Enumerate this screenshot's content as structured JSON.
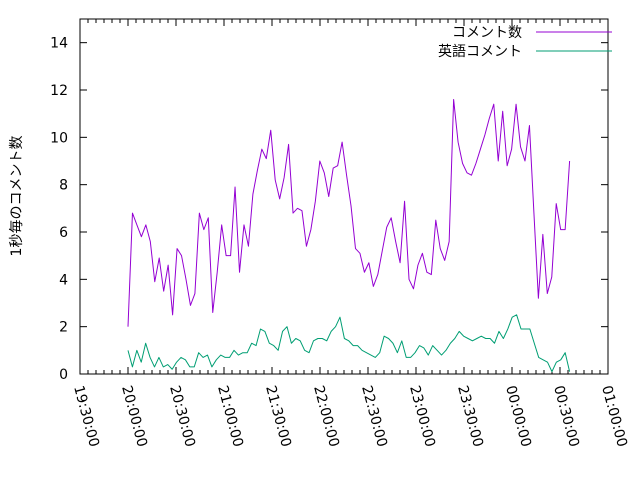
{
  "chart_data": {
    "type": "line",
    "title": "",
    "xlabel": "",
    "ylabel": "1秒毎のコメント数",
    "ylim": [
      0,
      15
    ],
    "yticks": [
      0,
      2,
      4,
      6,
      8,
      10,
      12,
      14
    ],
    "xlim": [
      "19:30:00",
      "01:00:00"
    ],
    "xticks": [
      "19:30:00",
      "20:00:00",
      "20:30:00",
      "21:00:00",
      "21:30:00",
      "22:00:00",
      "22:30:00",
      "23:00:00",
      "23:30:00",
      "00:00:00",
      "00:30:00",
      "01:00:00"
    ],
    "grid": false,
    "legend_position": "top-right",
    "x_start": "20:00:00",
    "x_end": "00:36:00",
    "series": [
      {
        "name": "コメント数",
        "color": "#9400d3",
        "values": [
          2.0,
          6.8,
          6.3,
          5.8,
          6.3,
          5.6,
          3.9,
          4.9,
          3.5,
          4.6,
          2.5,
          5.3,
          5.0,
          4.0,
          2.9,
          3.4,
          6.8,
          6.1,
          6.6,
          2.6,
          4.3,
          6.3,
          5.0,
          5.0,
          7.9,
          4.3,
          6.3,
          5.4,
          7.6,
          8.6,
          9.5,
          9.1,
          10.3,
          8.2,
          7.4,
          8.3,
          9.7,
          6.8,
          7.0,
          6.9,
          5.4,
          6.1,
          7.3,
          9.0,
          8.5,
          7.5,
          8.7,
          8.8,
          9.8,
          8.4,
          7.1,
          5.3,
          5.1,
          4.3,
          4.7,
          3.7,
          4.2,
          5.2,
          6.2,
          6.6,
          5.6,
          4.7,
          7.3,
          4.0,
          3.6,
          4.6,
          5.1,
          4.3,
          4.2,
          6.5,
          5.3,
          4.8,
          5.6,
          11.6,
          9.8,
          8.9,
          8.5,
          8.4,
          8.9,
          9.5,
          10.1,
          10.8,
          11.4,
          9.0,
          11.1,
          8.8,
          9.5,
          11.4,
          9.6,
          9.0,
          10.5,
          6.8,
          3.2,
          5.9,
          3.4,
          4.1,
          7.2,
          6.1,
          6.1,
          9.0
        ]
      },
      {
        "name": "英語コメント",
        "color": "#009e73",
        "values": [
          1.0,
          0.3,
          1.0,
          0.5,
          1.3,
          0.7,
          0.3,
          0.7,
          0.3,
          0.4,
          0.2,
          0.5,
          0.7,
          0.6,
          0.3,
          0.3,
          0.9,
          0.7,
          0.8,
          0.3,
          0.6,
          0.8,
          0.7,
          0.7,
          1.0,
          0.8,
          0.9,
          0.9,
          1.3,
          1.2,
          1.9,
          1.8,
          1.3,
          1.2,
          1.0,
          1.8,
          2.0,
          1.3,
          1.5,
          1.4,
          1.0,
          0.9,
          1.4,
          1.5,
          1.5,
          1.4,
          1.8,
          2.0,
          2.4,
          1.5,
          1.4,
          1.2,
          1.2,
          1.0,
          0.9,
          0.8,
          0.7,
          0.9,
          1.6,
          1.5,
          1.3,
          0.9,
          1.4,
          0.7,
          0.7,
          0.9,
          1.2,
          1.1,
          0.8,
          1.2,
          1.0,
          0.8,
          1.0,
          1.3,
          1.5,
          1.8,
          1.6,
          1.5,
          1.4,
          1.5,
          1.6,
          1.5,
          1.5,
          1.3,
          1.8,
          1.5,
          1.9,
          2.4,
          2.5,
          1.9,
          1.9,
          1.9,
          1.3,
          0.7,
          0.6,
          0.5,
          0.1,
          0.5,
          0.6,
          0.9,
          0.1
        ]
      }
    ]
  }
}
